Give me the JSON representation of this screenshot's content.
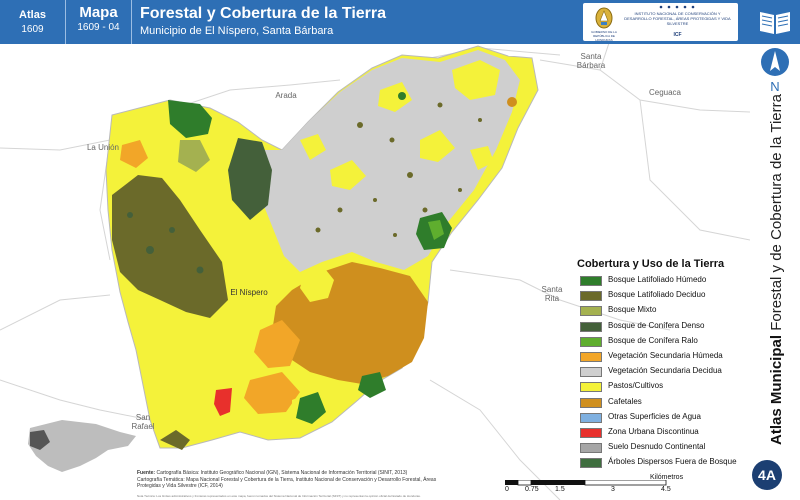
{
  "header": {
    "atlas_label": "Atlas",
    "atlas_number": "1609",
    "mapa_label": "Mapa",
    "mapa_number": "1609 - 04",
    "title": "Forestal y Cobertura de la Tierra",
    "subtitle": "Municipio de El Níspero, Santa Bárbara",
    "logo_left_text": "GOBIERNO DE LA REPÚBLICA DE HONDURAS",
    "logo_right_text": "INSTITUTO NACIONAL DE CONSERVACIÓN Y DESARROLLO FORESTAL, ÁREAS PROTEGIDAS Y VIDA SILVESTRE",
    "logo_acronym": "ICF"
  },
  "compass": {
    "label": "N",
    "icon": "north-arrow-icon"
  },
  "side_title": {
    "bold": "Atlas Municipal",
    "rest": " Forestal y de Cobertura de la Tierra"
  },
  "badge": "4A",
  "places": [
    {
      "name": "Santa Bárbara",
      "line1": "Santa",
      "line2": "Bárbara"
    },
    {
      "name": "Arada",
      "line1": "Arada",
      "line2": ""
    },
    {
      "name": "Ceguaca",
      "line1": "Ceguaca",
      "line2": ""
    },
    {
      "name": "La Unión",
      "line1": "La Unión",
      "line2": ""
    },
    {
      "name": "El Níspero",
      "line1": "El Níspero",
      "line2": ""
    },
    {
      "name": "Santa Rita",
      "line1": "Santa",
      "line2": "Rita"
    },
    {
      "name": "San Rafael",
      "line1": "San",
      "line2": "Rafael"
    }
  ],
  "legend": {
    "title": "Cobertura y Uso de la Tierra",
    "items": [
      {
        "label": "Bosque Latifoliado Húmedo",
        "color": "#2f7d2b"
      },
      {
        "label": "Bosque Latifoliado Deciduo",
        "color": "#6b6a2a"
      },
      {
        "label": "Bosque Mixto",
        "color": "#a4b150"
      },
      {
        "label": "Bosque de Conífera Denso",
        "color": "#44603a"
      },
      {
        "label": "Bosque de Conífera Ralo",
        "color": "#5fae2e"
      },
      {
        "label": "Vegetación Secundaria Húmeda",
        "color": "#f2a628"
      },
      {
        "label": "Vegetación Secundaria Decidua",
        "color": "#cfcfcf"
      },
      {
        "label": "Pastos/Cultivos",
        "color": "#f4f23a"
      },
      {
        "label": "Cafetales",
        "color": "#cf8f1e"
      },
      {
        "label": "Otras Superficies de Agua",
        "color": "#7fb0e0"
      },
      {
        "label": "Zona Urbana Discontinua",
        "color": "#e8302c"
      },
      {
        "label": "Suelo Desnudo Continental",
        "color": "#a6a6a6"
      },
      {
        "label": "Árboles Dispersos Fuera de Bosque",
        "color": "#3f6e3f"
      }
    ]
  },
  "sources": {
    "label": "Fuente:",
    "line1": "Cartografía Básica: Instituto Geográfico Nacional (IGN), Sistema Nacional de Información Territorial (SINIT, 2013)",
    "line2": "Cartografía Temática: Mapa Nacional Forestal y Cobertura de la Tierra, Instituto Nacional de Conservación y Desarrollo Forestal, Áreas Protegidas y Vida Silvestre (ICF, 2014)",
    "notes": "Nota Técnica: Los límites administrativos y fronteras representados en este mapa, fueron tomados del Sistema Nacional de Información Territorial (SINIT) y no representan la opinión oficial del Estado de Honduras."
  },
  "scale": {
    "unit": "Kilómetros",
    "ticks": [
      "0",
      "0.75",
      "1.5",
      "3",
      "4.5"
    ]
  },
  "colors": {
    "header_blue": "#2e6fb5",
    "badge_navy": "#1c3f72",
    "inset_country": "#bdbdbd",
    "inset_highlight": "#555555"
  }
}
